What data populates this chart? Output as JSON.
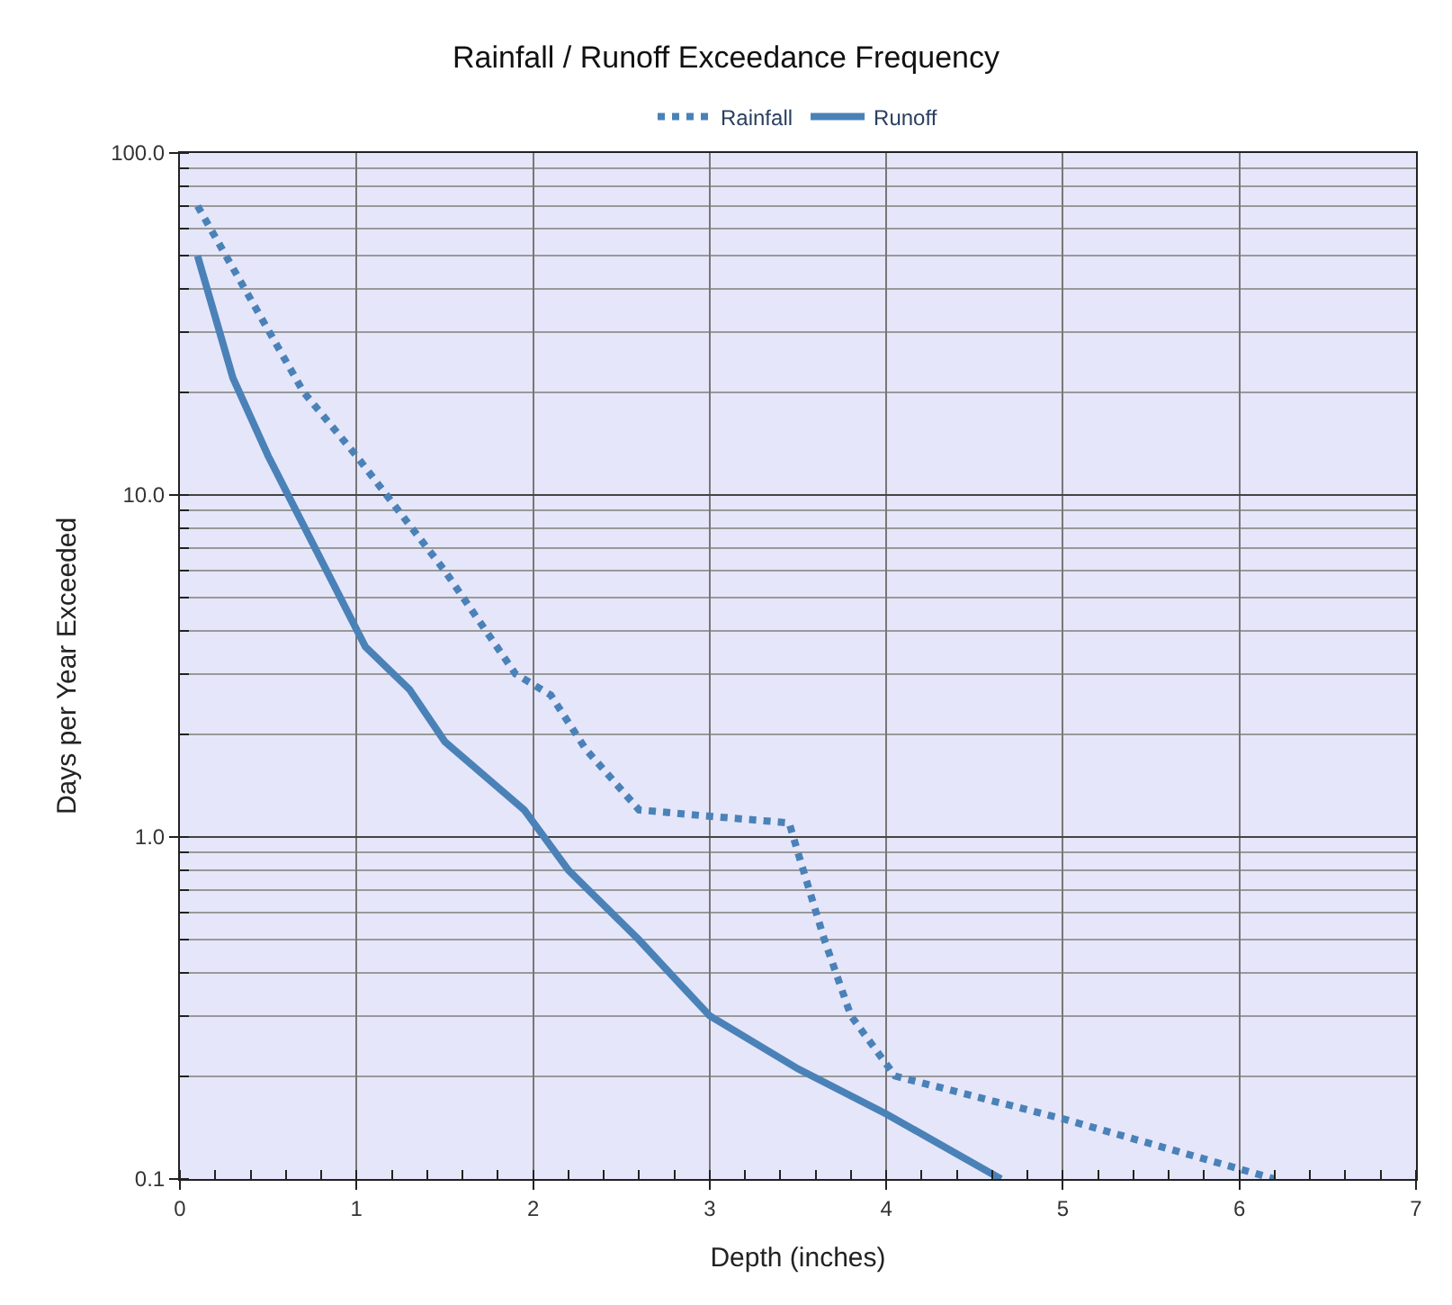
{
  "chart_data": {
    "type": "line",
    "title": "Rainfall / Runoff Exceedance Frequency",
    "xlabel": "Depth (inches)",
    "ylabel": "Days per Year Exceeded",
    "log": "y",
    "grid": true,
    "legend": "top",
    "marker": "none",
    "xlim": [
      0,
      7
    ],
    "xticks": [
      0,
      1,
      2,
      3,
      4,
      5,
      6,
      7
    ],
    "ylim": [
      0.1,
      100
    ],
    "yticks": [
      {
        "value": 0.1,
        "label": "0.1"
      },
      {
        "value": 1,
        "label": "1.0"
      },
      {
        "value": 10,
        "label": "10.0"
      },
      {
        "value": 100,
        "label": "100.0"
      }
    ],
    "series": [
      {
        "name": "Rainfall",
        "color": "#4a82b8",
        "line_style": "dotted",
        "x": [
          0.1,
          0.7,
          1.0,
          1.5,
          1.9,
          2.1,
          2.3,
          2.6,
          3.0,
          3.45,
          3.5,
          3.65,
          3.8,
          4.05,
          5.0,
          6.2
        ],
        "values": [
          70,
          20,
          13,
          6,
          3,
          2.6,
          1.8,
          1.2,
          1.15,
          1.1,
          0.9,
          0.5,
          0.3,
          0.2,
          0.15,
          0.1
        ]
      },
      {
        "name": "Runoff",
        "color": "#4a82b8",
        "line_style": "solid",
        "x": [
          0.1,
          0.3,
          0.5,
          1.05,
          1.3,
          1.5,
          1.95,
          2.2,
          2.6,
          3.0,
          3.5,
          4.0,
          4.65
        ],
        "values": [
          50,
          22,
          13,
          3.6,
          2.7,
          1.9,
          1.2,
          0.8,
          0.5,
          0.3,
          0.21,
          0.155,
          0.1
        ]
      }
    ]
  }
}
